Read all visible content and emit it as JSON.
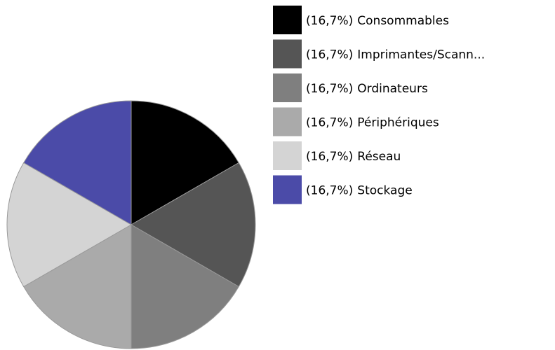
{
  "chart_data": {
    "type": "pie",
    "categories": [
      "Consommables",
      "Imprimantes/Scann...",
      "Ordinateurs",
      "Périphériques",
      "Réseau",
      "Stockage"
    ],
    "values": [
      16.7,
      16.7,
      16.7,
      16.7,
      16.7,
      16.7
    ],
    "value_labels": [
      "(16,7%)",
      "(16,7%)",
      "(16,7%)",
      "(16,7%)",
      "(16,7%)",
      "(16,7%)"
    ],
    "colors": [
      "#000000",
      "#555555",
      "#7f7f7f",
      "#aaaaaa",
      "#d4d4d4",
      "#4b4ba8"
    ],
    "legend": "right"
  }
}
